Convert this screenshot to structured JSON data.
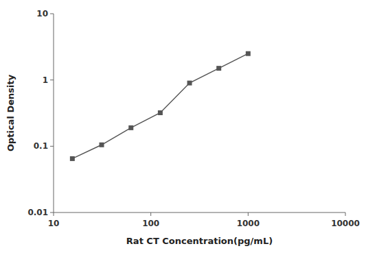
{
  "chart_data": {
    "type": "line",
    "xlabel": "Rat CT Concentration(pg/mL)",
    "ylabel": "Optical Density",
    "x": [
      15.6,
      31.2,
      62.5,
      125,
      250,
      500,
      1000
    ],
    "values": [
      0.065,
      0.105,
      0.19,
      0.32,
      0.9,
      1.5,
      2.5
    ],
    "xlim": [
      10,
      10000
    ],
    "ylim": [
      0.01,
      10
    ],
    "xticks": [
      10,
      100,
      1000,
      10000
    ],
    "yticks": [
      0.01,
      0.1,
      1,
      10
    ],
    "log": true,
    "color": "#555555",
    "marker": "square"
  }
}
